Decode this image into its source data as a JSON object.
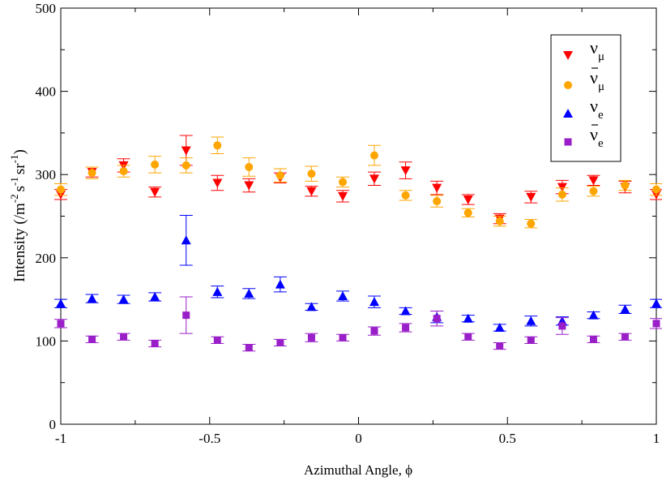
{
  "chart_data": {
    "type": "scatter",
    "title": "",
    "xlabel": "Azimuthal Angle, ϕ",
    "ylabel": "Intensity (/m",
    "ylabel_parts": {
      "base": "Intensity (/m",
      "sup1": "-2",
      "s": "s",
      "sup2": "-1",
      "sr": "sr",
      "sup3": "-1",
      "close": ")"
    },
    "xlim": [
      -1,
      1
    ],
    "ylim": [
      0,
      500
    ],
    "xticks": [
      -1,
      -0.5,
      0,
      0.5,
      1
    ],
    "xtick_labels": [
      "-1",
      "-0.5",
      "0",
      "0.5",
      "1"
    ],
    "yticks": [
      0,
      100,
      200,
      300,
      400,
      500
    ],
    "ytick_labels": [
      "0",
      "100",
      "200",
      "300",
      "400",
      "500"
    ],
    "grid": false,
    "legend_position": "top-right",
    "x": [
      -1.0,
      -0.895,
      -0.789,
      -0.684,
      -0.579,
      -0.474,
      -0.368,
      -0.263,
      -0.158,
      -0.053,
      0.053,
      0.158,
      0.263,
      0.368,
      0.474,
      0.579,
      0.684,
      0.789,
      0.895,
      1.0
    ],
    "series": [
      {
        "name": "ν_μ",
        "legend_main": "ν",
        "legend_sub": "μ",
        "bar": false,
        "color": "#ff0000",
        "marker": "triangle-down",
        "y": [
          276,
          303,
          311,
          279,
          329,
          290,
          287,
          296,
          280,
          274,
          295,
          305,
          284,
          270,
          247,
          273,
          285,
          293,
          285,
          276
        ],
        "err": [
          6,
          6,
          8,
          6,
          18,
          9,
          8,
          6,
          6,
          7,
          8,
          10,
          8,
          6,
          6,
          7,
          8,
          6,
          7,
          6
        ]
      },
      {
        "name": "ν̄_μ",
        "legend_main": "ν",
        "legend_sub": "μ",
        "bar": true,
        "color": "#ffa500",
        "marker": "circle",
        "y": [
          282,
          302,
          304,
          312,
          311,
          335,
          309,
          299,
          301,
          291,
          323,
          275,
          268,
          254,
          244,
          241,
          276,
          280,
          287,
          282
        ],
        "err": [
          7,
          7,
          7,
          10,
          9,
          10,
          11,
          8,
          9,
          6,
          12,
          6,
          7,
          5,
          6,
          5,
          8,
          6,
          6,
          7
        ]
      },
      {
        "name": "ν_e",
        "legend_main": "ν",
        "legend_sub": "e",
        "bar": false,
        "color": "#0000ff",
        "marker": "triangle-up",
        "y": [
          145,
          151,
          150,
          153,
          221,
          159,
          157,
          168,
          141,
          154,
          147,
          136,
          129,
          127,
          116,
          124,
          124,
          131,
          138,
          145
        ],
        "err": [
          5,
          5,
          5,
          5,
          30,
          7,
          6,
          9,
          4,
          6,
          7,
          4,
          7,
          4,
          4,
          6,
          5,
          4,
          5,
          5
        ]
      },
      {
        "name": "ν̄_e",
        "legend_main": "ν",
        "legend_sub": "e",
        "bar": true,
        "color": "#9a1fc9",
        "marker": "square",
        "y": [
          121,
          102,
          105,
          97,
          131,
          101,
          92,
          98,
          104,
          104,
          112,
          116,
          127,
          105,
          94,
          101,
          118,
          102,
          105,
          121
        ],
        "err": [
          5,
          4,
          4,
          4,
          22,
          4,
          4,
          4,
          5,
          4,
          5,
          5,
          9,
          4,
          4,
          4,
          10,
          4,
          4,
          6
        ]
      }
    ]
  }
}
